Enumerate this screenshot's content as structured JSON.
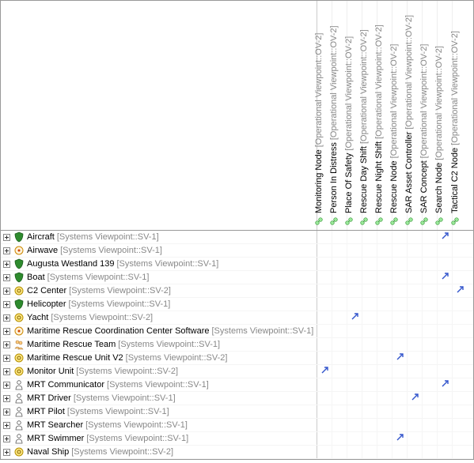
{
  "columns": [
    {
      "label": "Monitoring Node",
      "stereo": "[Operational Viewpoint::OV-2]",
      "icon": "node-green"
    },
    {
      "label": "Person In Distress",
      "stereo": "[Operational Viewpoint::OV-2]",
      "icon": "node-green"
    },
    {
      "label": "Place Of Safety",
      "stereo": "[Operational Viewpoint::OV-2]",
      "icon": "node-green"
    },
    {
      "label": "Rescue Day Shift",
      "stereo": "[Operational Viewpoint::OV-2]",
      "icon": "node-green"
    },
    {
      "label": "Rescue Night Shift",
      "stereo": "[Operational Viewpoint::OV-2]",
      "icon": "node-green"
    },
    {
      "label": "Rescue Node",
      "stereo": "[Operational Viewpoint::OV-2]",
      "icon": "node-green"
    },
    {
      "label": "SAR Asset Controller",
      "stereo": "[Operational Viewpoint::OV-2]",
      "icon": "node-green"
    },
    {
      "label": "SAR Concept",
      "stereo": "[Operational Viewpoint::OV-2]",
      "icon": "node-green"
    },
    {
      "label": "Search Node",
      "stereo": "[Operational Viewpoint::OV-2]",
      "icon": "node-green"
    },
    {
      "label": "Tactical C2 Node",
      "stereo": "[Operational Viewpoint::OV-2]",
      "icon": "node-green"
    }
  ],
  "rows": [
    {
      "name": "Aircraft",
      "stereo": "[Systems Viewpoint::SV-1]",
      "icon": "shield",
      "marks": [
        0,
        0,
        0,
        0,
        0,
        0,
        0,
        0,
        1,
        0
      ]
    },
    {
      "name": "Airwave",
      "stereo": "[Systems Viewpoint::SV-1]",
      "icon": "circle-dot",
      "marks": [
        0,
        0,
        0,
        0,
        0,
        0,
        0,
        0,
        0,
        0
      ]
    },
    {
      "name": "Augusta Westland 139",
      "stereo": "[Systems Viewpoint::SV-1]",
      "icon": "shield",
      "marks": [
        0,
        0,
        0,
        0,
        0,
        0,
        0,
        0,
        0,
        0
      ]
    },
    {
      "name": "Boat",
      "stereo": "[Systems Viewpoint::SV-1]",
      "icon": "shield",
      "marks": [
        0,
        0,
        0,
        0,
        0,
        0,
        0,
        0,
        1,
        0
      ]
    },
    {
      "name": "C2 Center",
      "stereo": "[Systems Viewpoint::SV-2]",
      "icon": "gear",
      "marks": [
        0,
        0,
        0,
        0,
        0,
        0,
        0,
        0,
        0,
        1
      ]
    },
    {
      "name": "Helicopter",
      "stereo": "[Systems Viewpoint::SV-1]",
      "icon": "shield",
      "marks": [
        0,
        0,
        0,
        0,
        0,
        0,
        0,
        0,
        0,
        0
      ]
    },
    {
      "name": "Yacht",
      "stereo": "[Systems Viewpoint::SV-2]",
      "icon": "gear",
      "marks": [
        0,
        0,
        1,
        0,
        0,
        0,
        0,
        0,
        0,
        0
      ]
    },
    {
      "name": "Maritime Rescue Coordination Center Software",
      "stereo": "[Systems Viewpoint::SV-1]",
      "icon": "circle-dot",
      "marks": [
        0,
        0,
        0,
        0,
        0,
        0,
        0,
        0,
        0,
        0
      ]
    },
    {
      "name": "Maritime Rescue Team",
      "stereo": "[Systems Viewpoint::SV-1]",
      "icon": "people",
      "marks": [
        0,
        0,
        0,
        0,
        0,
        0,
        0,
        0,
        0,
        0
      ]
    },
    {
      "name": "Maritime Rescue Unit V2",
      "stereo": "[Systems Viewpoint::SV-2]",
      "icon": "gear",
      "marks": [
        0,
        0,
        0,
        0,
        0,
        1,
        0,
        0,
        0,
        0
      ]
    },
    {
      "name": "Monitor Unit",
      "stereo": "[Systems Viewpoint::SV-2]",
      "icon": "gear",
      "marks": [
        1,
        0,
        0,
        0,
        0,
        0,
        0,
        0,
        0,
        0
      ]
    },
    {
      "name": "MRT Communicator",
      "stereo": "[Systems Viewpoint::SV-1]",
      "icon": "person",
      "marks": [
        0,
        0,
        0,
        0,
        0,
        0,
        0,
        0,
        1,
        0
      ]
    },
    {
      "name": "MRT Driver",
      "stereo": "[Systems Viewpoint::SV-1]",
      "icon": "person",
      "marks": [
        0,
        0,
        0,
        0,
        0,
        0,
        1,
        0,
        0,
        0
      ]
    },
    {
      "name": "MRT Pilot",
      "stereo": "[Systems Viewpoint::SV-1]",
      "icon": "person",
      "marks": [
        0,
        0,
        0,
        0,
        0,
        0,
        0,
        0,
        0,
        0
      ]
    },
    {
      "name": "MRT Searcher",
      "stereo": "[Systems Viewpoint::SV-1]",
      "icon": "person",
      "marks": [
        0,
        0,
        0,
        0,
        0,
        0,
        0,
        0,
        0,
        0
      ]
    },
    {
      "name": "MRT Swimmer",
      "stereo": "[Systems Viewpoint::SV-1]",
      "icon": "person",
      "marks": [
        0,
        0,
        0,
        0,
        0,
        1,
        0,
        0,
        0,
        0
      ]
    },
    {
      "name": "Naval Ship",
      "stereo": "[Systems Viewpoint::SV-2]",
      "icon": "gear",
      "marks": [
        0,
        0,
        0,
        0,
        0,
        0,
        0,
        0,
        0,
        0
      ]
    }
  ],
  "icons": {
    "shield": "<svg width='14' height='14' viewBox='0 0 14 14'><path d='M7 1 L12 3 C12 8 10 12 7 13 C4 12 2 8 2 3 Z' fill='#2e8b2e' stroke='#1a5a1a' stroke-width='0.7'/></svg>",
    "circle-dot": "<svg width='14' height='14' viewBox='0 0 14 14'><circle cx='7' cy='7' r='5' fill='#fff2d9' stroke='#cc8800' stroke-width='1'/><circle cx='7' cy='7' r='1.5' fill='#cc4400'/></svg>",
    "gear": "<svg width='14' height='14' viewBox='0 0 14 14'><circle cx='7' cy='7' r='5' fill='#ffe680' stroke='#b38f00' stroke-width='1'/><circle cx='7' cy='7' r='2' fill='none' stroke='#806600' stroke-width='1'/></svg>",
    "people": "<svg width='14' height='14' viewBox='0 0 14 14'><circle cx='5' cy='4' r='2' fill='#ffcc80' stroke='#aa7733' stroke-width='0.6'/><circle cx='9' cy='5' r='2' fill='#ffcc80' stroke='#aa7733' stroke-width='0.6'/><path d='M2 12 Q5 8 8 12 Z' fill='#ffcc80' stroke='#aa7733' stroke-width='0.6'/><path d='M6 13 Q9 9 12 13 Z' fill='#ffcc80' stroke='#aa7733' stroke-width='0.6'/></svg>",
    "person": "<svg width='14' height='14' viewBox='0 0 14 14'><circle cx='7' cy='4' r='2.3' fill='#ffffff' stroke='#555' stroke-width='0.8'/><path d='M3 13 Q3 8 7 8 Q11 8 11 13 Z' fill='#ffffff' stroke='#555' stroke-width='0.8'/></svg>",
    "node-green": "<svg width='12' height='12' viewBox='0 0 12 12'><circle cx='4' cy='4' r='2.3' fill='#9be89b' stroke='#3a9a3a' stroke-width='0.7'/><circle cx='8' cy='8' r='2.3' fill='#9be89b' stroke='#3a9a3a' stroke-width='0.7'/><line x1='5' y1='5' x2='7' y2='7' stroke='#3a9a3a' stroke-width='0.8'/></svg>",
    "arrow": "<svg width='13' height='13' viewBox='0 0 13 13'><line x1='3' y1='10' x2='10' y2='3' stroke='#3355cc' stroke-width='1.4'/><polyline points='6,3 10,3 10,7' fill='none' stroke='#3355cc' stroke-width='1.4'/></svg>",
    "toggle-plus": "<svg width='9' height='9' viewBox='0 0 9 9'><rect x='0.5' y='0.5' width='8' height='8' fill='#ffffff' stroke='#888' stroke-width='1'/><line x1='2' y1='4.5' x2='7' y2='4.5' stroke='#333' stroke-width='1'/><line x1='4.5' y1='2' x2='4.5' y2='7' stroke='#333' stroke-width='1'/></svg>"
  }
}
